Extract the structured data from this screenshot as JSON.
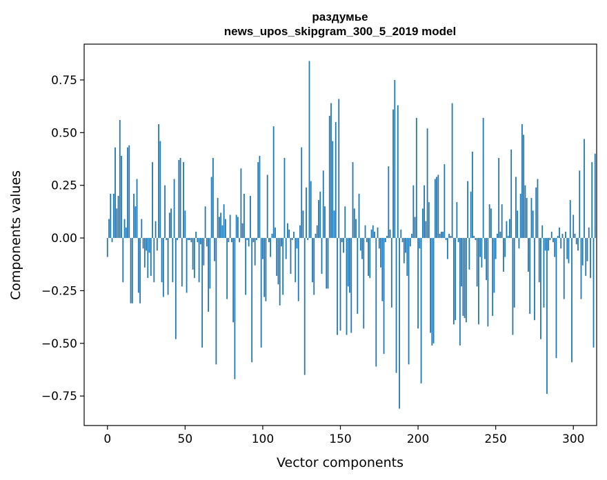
{
  "chart_data": {
    "type": "bar",
    "title": "раздумье",
    "subtitle": "news_upos_skipgram_300_5_2019 model",
    "xlabel": "Vector components",
    "ylabel": "Components values",
    "xlim": [
      -15,
      315
    ],
    "ylim": [
      -0.89,
      0.92
    ],
    "xticks": [
      0,
      50,
      100,
      150,
      200,
      250,
      300
    ],
    "yticks": [
      -0.75,
      -0.5,
      -0.25,
      0.0,
      0.25,
      0.5,
      0.75
    ],
    "xtick_labels": [
      "0",
      "50",
      "100",
      "150",
      "200",
      "250",
      "300"
    ],
    "ytick_labels": [
      "−0.75",
      "−0.50",
      "−0.25",
      "0.00",
      "0.25",
      "0.50",
      "0.75"
    ],
    "bar_color": "#1f77b4",
    "grid": false,
    "values": [
      -0.09,
      0.09,
      0.21,
      -0.02,
      0.21,
      0.43,
      0.14,
      0.2,
      0.56,
      0.39,
      -0.21,
      0.09,
      0.05,
      0.43,
      0.44,
      -0.31,
      -0.31,
      0.21,
      0.15,
      0.28,
      -0.26,
      -0.31,
      0.09,
      -0.05,
      -0.14,
      -0.06,
      -0.19,
      -0.07,
      -0.18,
      0.36,
      -0.21,
      0.08,
      -0.06,
      0.54,
      0.46,
      -0.21,
      -0.28,
      0.25,
      -0.01,
      -0.27,
      0.12,
      0.14,
      -0.21,
      0.28,
      -0.48,
      -0.01,
      0.37,
      0.38,
      -0.23,
      0.36,
      0.13,
      -0.26,
      -0.01,
      -0.01,
      -0.02,
      -0.15,
      -0.19,
      0.03,
      -0.02,
      -0.21,
      -0.03,
      -0.52,
      -0.13,
      0.15,
      -0.04,
      -0.35,
      -0.24,
      0.29,
      0.38,
      -0.11,
      -0.6,
      0.19,
      0.1,
      0.12,
      0.06,
      0.16,
      0.09,
      -0.29,
      -0.02,
      0.11,
      -0.02,
      -0.4,
      -0.67,
      0.11,
      0.1,
      -0.02,
      0.33,
      0.07,
      0.21,
      -0.27,
      -0.01,
      -0.04,
      0.2,
      -0.59,
      -0.02,
      -0.13,
      -0.01,
      0.36,
      0.39,
      -0.52,
      -0.1,
      -0.28,
      -0.3,
      0.3,
      -0.02,
      -0.09,
      0.02,
      0.53,
      0.05,
      -0.18,
      -0.22,
      -0.32,
      -0.04,
      -0.27,
      0.38,
      -0.1,
      0.07,
      0.04,
      -0.17,
      -0.01,
      0.03,
      -0.21,
      -0.05,
      -0.3,
      0.06,
      0.43,
      0.13,
      -0.65,
      0.24,
      -0.01,
      0.84,
      0.27,
      -0.21,
      -0.27,
      0.02,
      0.06,
      0.18,
      0.22,
      -0.17,
      0.32,
      0.15,
      -0.24,
      -0.24,
      0.58,
      0.64,
      0.46,
      0.13,
      0.55,
      -0.46,
      0.66,
      -0.44,
      -0.02,
      -0.07,
      0.15,
      -0.46,
      -0.23,
      -0.26,
      -0.45,
      0.36,
      0.14,
      0.09,
      -0.36,
      0.21,
      -0.06,
      -0.1,
      -0.43,
      0.06,
      -0.02,
      -0.18,
      -0.19,
      0.04,
      0.06,
      0.03,
      -0.61,
      0.05,
      -0.05,
      -0.14,
      -0.3,
      -0.55,
      -0.02,
      0.01,
      0.34,
      0.04,
      -0.33,
      0.61,
      0.75,
      -0.64,
      0.63,
      -0.81,
      0.04,
      -0.02,
      -0.12,
      -0.07,
      -0.18,
      -0.6,
      -0.04,
      0.02,
      0.25,
      0.1,
      0.57,
      -0.43,
      -0.05,
      -0.69,
      0.14,
      0.25,
      0.08,
      0.52,
      0.17,
      -0.45,
      -0.51,
      -0.5,
      0.28,
      0.29,
      0.3,
      0.02,
      0.03,
      0.03,
      0.35,
      -0.01,
      -0.1,
      0.02,
      0.01,
      0.64,
      -0.41,
      -0.39,
      0.17,
      -0.02,
      -0.51,
      -0.23,
      -0.37,
      -0.38,
      -0.4,
      0.27,
      -0.15,
      0.22,
      0.41,
      0.01,
      -0.01,
      -0.23,
      -0.41,
      -0.09,
      -0.14,
      0.57,
      -0.1,
      -0.2,
      -0.42,
      0.16,
      0.14,
      -0.37,
      -0.26,
      -0.1,
      0.02,
      0.38,
      0.03,
      0.16,
      -0.16,
      -0.09,
      0.08,
      0.01,
      0.09,
      0.42,
      -0.46,
      -0.33,
      0.29,
      0.13,
      -0.05,
      0.21,
      0.54,
      0.49,
      0.25,
      0.19,
      -0.16,
      -0.36,
      0.19,
      0.13,
      -0.39,
      0.24,
      0.28,
      -0.21,
      -0.48,
      0.06,
      -0.33,
      -0.06,
      -0.74,
      -0.06,
      -0.01,
      0.03,
      -0.02,
      -0.09,
      -0.57,
      0.01,
      0.05,
      -0.05,
      0.02,
      -0.29,
      0.03,
      -0.1,
      -0.12,
      0.18,
      -0.59,
      0.11,
      0.02,
      -0.03,
      -0.06,
      0.32,
      -0.29,
      -0.13,
      0.47,
      -0.18,
      -0.11,
      0.05,
      -0.19,
      0.36,
      -0.52,
      0.4
    ]
  }
}
